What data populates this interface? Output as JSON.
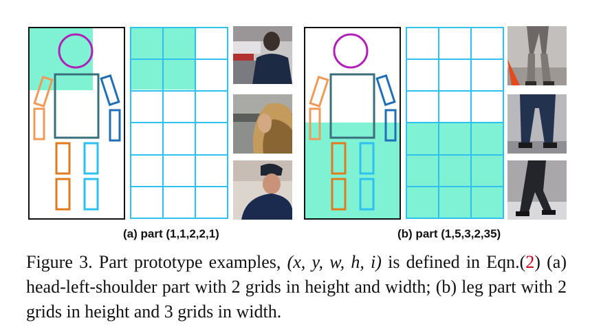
{
  "subfigures": [
    {
      "id": "a",
      "label": "(a) part (1,1,2,2,1)"
    },
    {
      "id": "b",
      "label": "(b) part (1,5,3,2,35)"
    }
  ],
  "caption": {
    "prefix": "Figure 3. Part prototype examples, ",
    "math": "(x, y, w, h, i)",
    "middle": " is defined in Eqn.(",
    "ref": "2",
    "rest": ") (a) head-left-shoulder part with 2 grids in height and width; (b) leg part with 2 grids in height and 3 grids in width."
  },
  "colors": {
    "highlight": "#7ff2d4",
    "grid_line": "#2ec0ee",
    "head": "#b11fb8",
    "torso": "#3a6e7a",
    "left_arm": "#f09a5a",
    "right_arm": "#1f6fb8",
    "left_leg": "#e07a1e",
    "right_leg": "#2ec0ee",
    "frame": "#111111"
  }
}
